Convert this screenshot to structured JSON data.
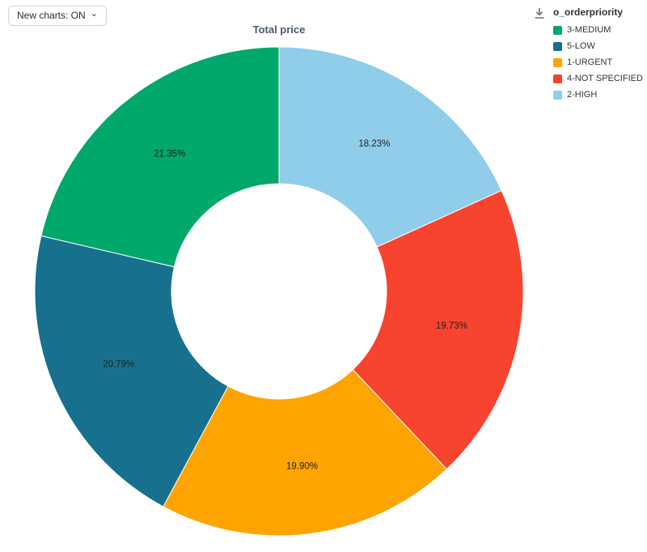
{
  "controls": {
    "new_charts_label": "New charts: ON",
    "chevron_glyph": "⌄"
  },
  "chart_data": {
    "type": "pie",
    "donut": true,
    "title": "Total price",
    "start_angle_deg": -90,
    "direction": "clockwise",
    "inner_radius_ratio": 0.44,
    "series": [
      {
        "label": "2-HIGH",
        "value": 18.23,
        "pct_label": "18.23%",
        "color": "#8FCDEA"
      },
      {
        "label": "4-NOT SPECIFIED",
        "value": 19.73,
        "pct_label": "19.73%",
        "color": "#F8432E"
      },
      {
        "label": "1-URGENT",
        "value": 19.9,
        "pct_label": "19.90%",
        "color": "#FFA400"
      },
      {
        "label": "5-LOW",
        "value": 20.79,
        "pct_label": "20.79%",
        "color": "#16708E"
      },
      {
        "label": "3-MEDIUM",
        "value": 21.35,
        "pct_label": "21.35%",
        "color": "#00A86B"
      }
    ],
    "legend": {
      "title": "o_orderpriority",
      "items": [
        {
          "label": "3-MEDIUM",
          "color": "#00A86B"
        },
        {
          "label": "5-LOW",
          "color": "#16708E"
        },
        {
          "label": "1-URGENT",
          "color": "#FFA400"
        },
        {
          "label": "4-NOT SPECIFIED",
          "color": "#F8432E"
        },
        {
          "label": "2-HIGH",
          "color": "#8FCDEA"
        }
      ]
    }
  }
}
